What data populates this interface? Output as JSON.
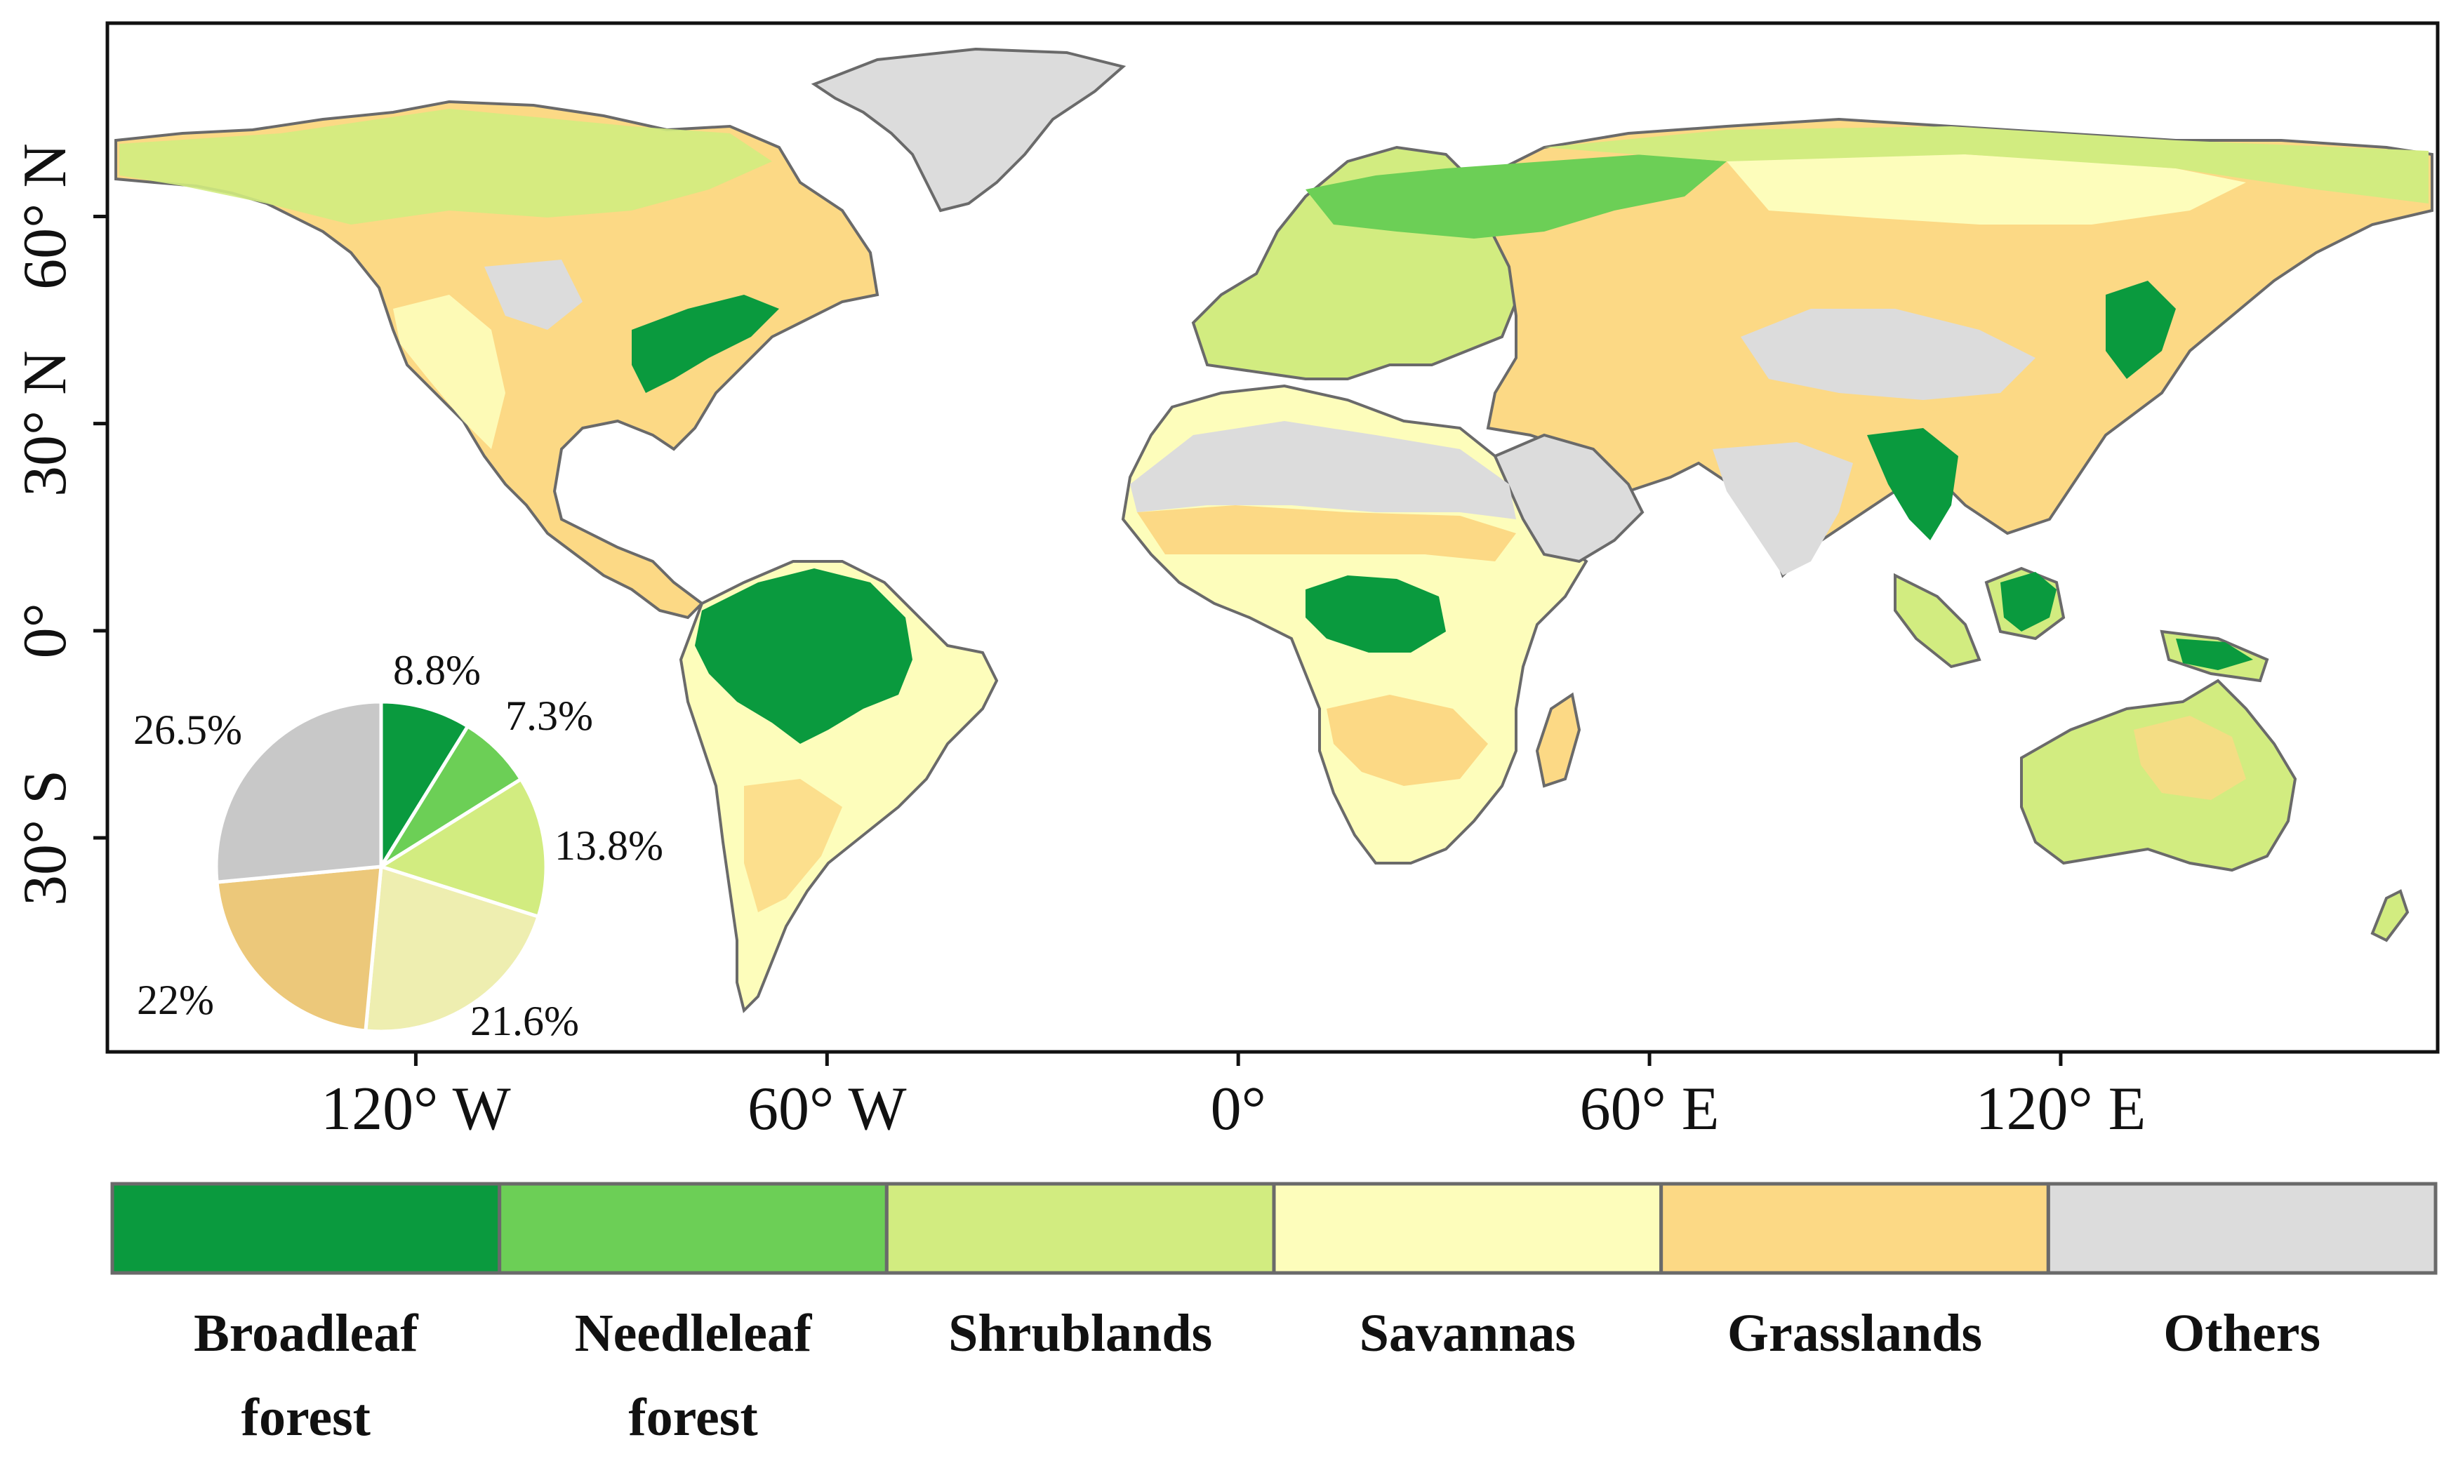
{
  "axes": {
    "x_ticks": [
      {
        "lon": -120,
        "label": "120° W"
      },
      {
        "lon": -60,
        "label": "60° W"
      },
      {
        "lon": 0,
        "label": "0°"
      },
      {
        "lon": 60,
        "label": "60° E"
      },
      {
        "lon": 120,
        "label": "120° E"
      }
    ],
    "y_ticks": [
      {
        "lat": 60,
        "label": "60° N"
      },
      {
        "lat": 30,
        "label": "30° N"
      },
      {
        "lat": 0,
        "label": "0°"
      },
      {
        "lat": -30,
        "label": "30° S"
      }
    ],
    "lon_range": [
      -165,
      175
    ],
    "lat_range": [
      -61,
      88
    ]
  },
  "legend": {
    "classes": [
      {
        "key": "broadleaf",
        "line1": "Broadleaf",
        "line2": "forest",
        "color": "#0a9a3e"
      },
      {
        "key": "needleleaf",
        "line1": "Needleleaf",
        "line2": "forest",
        "color": "#6ccf56"
      },
      {
        "key": "shrublands",
        "line1": "Shrublands",
        "line2": "",
        "color": "#d2ec80"
      },
      {
        "key": "savannas",
        "line1": "Savannas",
        "line2": "",
        "color": "#fdfdbb"
      },
      {
        "key": "grasslands",
        "line1": "Grasslands",
        "line2": "",
        "color": "#fcd985"
      },
      {
        "key": "others",
        "line1": "Others",
        "line2": "",
        "color": "#dcdcdc"
      }
    ]
  },
  "chart_data": {
    "type": "pie",
    "slices": [
      {
        "category": "Broadleaf forest",
        "value": 8.8,
        "label": "8.8%",
        "color": "#0a9a3e"
      },
      {
        "category": "Needleleaf forest",
        "value": 7.3,
        "label": "7.3%",
        "color": "#6ccf56"
      },
      {
        "category": "Shrublands",
        "value": 13.8,
        "label": "13.8%",
        "color": "#d2ec80"
      },
      {
        "category": "Savannas",
        "value": 21.6,
        "label": "21.6%",
        "color": "#eeeeb0"
      },
      {
        "category": "Grasslands",
        "value": 22,
        "label": "22%",
        "color": "#ecc87a"
      },
      {
        "category": "Others",
        "value": 26.5,
        "label": "26.5%",
        "color": "#c8c8c8"
      }
    ]
  }
}
